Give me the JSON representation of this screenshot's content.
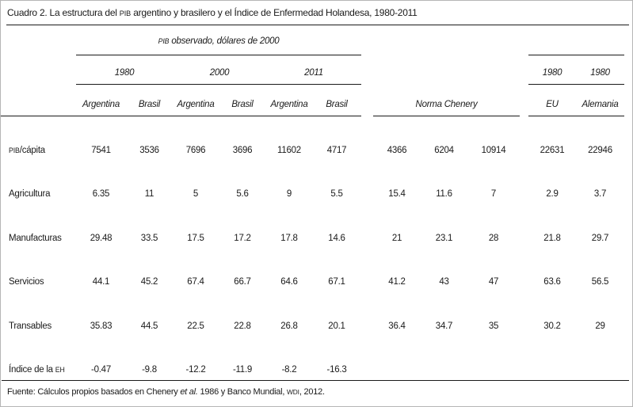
{
  "title": {
    "parts": [
      "Cuadro 2. La estructura del ",
      "PIB",
      " argentino y brasilero y el Índice de Enfermedad Holandesa, 1980-2011"
    ]
  },
  "header": {
    "pib_observado": [
      "PIB",
      " observado, dólares de 2000"
    ],
    "year_groups": [
      "1980",
      "2000",
      "2011"
    ],
    "country_cols": [
      "Argentina",
      "Brasil",
      "Argentina",
      "Brasil",
      "Argentina",
      "Brasil"
    ],
    "norma_chenery": "Norma Chenery",
    "right_years": [
      "1980",
      "1980"
    ],
    "right_cols": [
      "EU",
      "Alemania"
    ]
  },
  "rows": [
    {
      "label": [
        "PIB",
        "/cápita"
      ],
      "values": [
        "7541",
        "3536",
        "7696",
        "3696",
        "11602",
        "4717",
        "4366",
        "6204",
        "10914",
        "22631",
        "22946"
      ]
    },
    {
      "label": "Agricultura",
      "values": [
        "6.35",
        "11",
        "5",
        "5.6",
        "9",
        "5.5",
        "15.4",
        "11.6",
        "7",
        "2.9",
        "3.7"
      ]
    },
    {
      "label": "Manufacturas",
      "values": [
        "29.48",
        "33.5",
        "17.5",
        "17.2",
        "17.8",
        "14.6",
        "21",
        "23.1",
        "28",
        "21.8",
        "29.7"
      ]
    },
    {
      "label": "Servicios",
      "values": [
        "44.1",
        "45.2",
        "67.4",
        "66.7",
        "64.6",
        "67.1",
        "41.2",
        "43",
        "47",
        "63.6",
        "56.5"
      ]
    },
    {
      "label": "Transables",
      "values": [
        "35.83",
        "44.5",
        "22.5",
        "22.8",
        "26.8",
        "20.1",
        "36.4",
        "34.7",
        "35",
        "30.2",
        "29"
      ]
    },
    {
      "label": [
        "Índice de la ",
        "EH"
      ],
      "values": [
        "-0.47",
        "-9.8",
        "-12.2",
        "-11.9",
        "-8.2",
        "-16.3",
        "",
        "",
        "",
        "",
        ""
      ]
    }
  ],
  "footer": {
    "parts": [
      "Fuente: Cálculos propios basados en Chenery ",
      "et al.",
      " 1986 y Banco Mundial, ",
      "WDI",
      ", 2012."
    ]
  }
}
